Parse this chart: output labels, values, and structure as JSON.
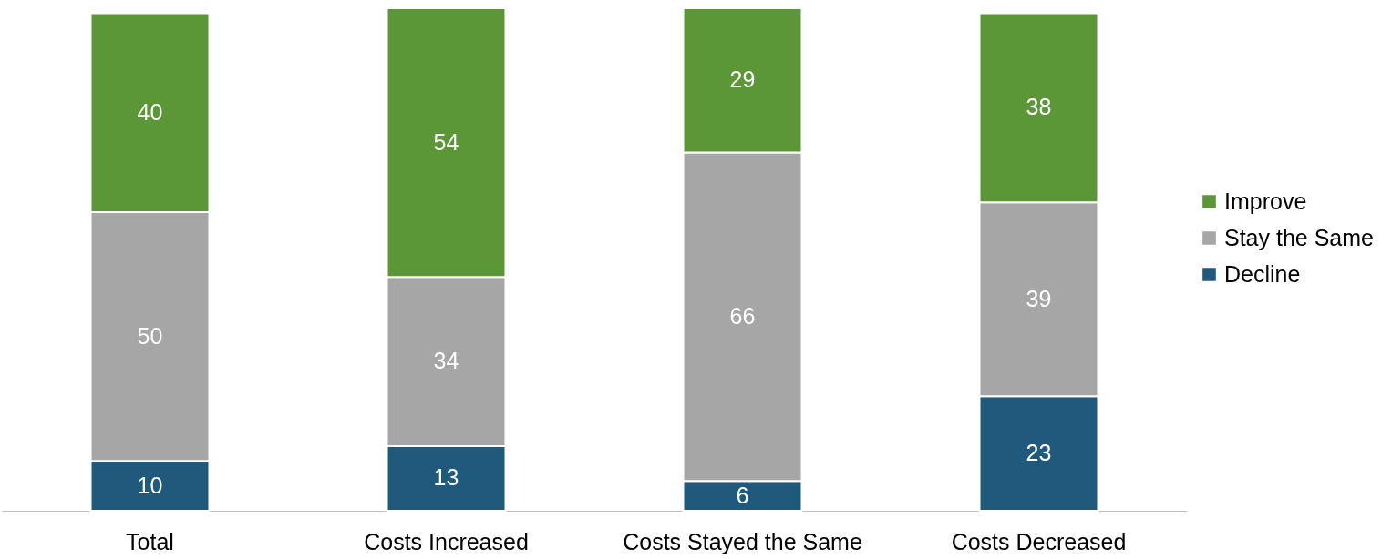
{
  "chart_data": {
    "type": "bar",
    "stacked": true,
    "data_labels": true,
    "legend": "right",
    "grid": false,
    "categories": [
      "Total",
      "Costs Increased",
      "Costs Stayed the Same",
      "Costs Decreased"
    ],
    "series": [
      {
        "name": "Decline",
        "color": "#1f5a7d",
        "values": [
          10,
          13,
          6,
          23
        ]
      },
      {
        "name": "Stay the Same",
        "color": "#a6a6a6",
        "values": [
          50,
          34,
          66,
          39
        ]
      },
      {
        "name": "Improve",
        "color": "#5b9637",
        "values": [
          40,
          54,
          29,
          38
        ]
      }
    ]
  }
}
